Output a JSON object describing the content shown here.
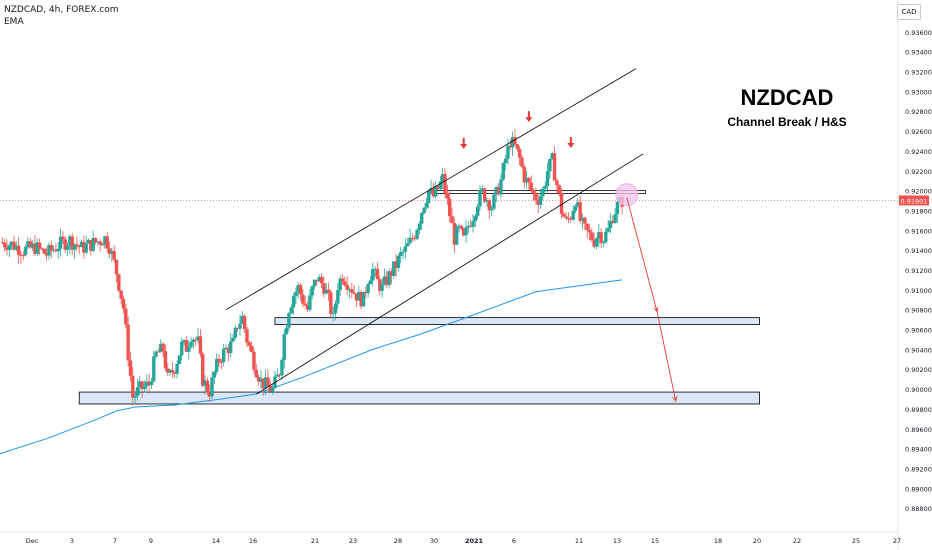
{
  "header": {
    "title": "NZDCAD, 4h, FOREX.com",
    "indicator": "EMA",
    "currency_button": "CAD"
  },
  "annotation": {
    "title": "NZDCAD",
    "subtitle": "Channel Break / H&S"
  },
  "colors": {
    "bull": "#26a69a",
    "bear": "#ef5350",
    "ema": "#2196f3",
    "arrow": "#e53935",
    "zone_fill": "#dbe7f7",
    "price_line": "#ef5350",
    "price_tag": "#ef5350"
  },
  "chart_data": {
    "type": "candlestick",
    "symbol": "NZDCAD",
    "timeframe": "4h",
    "ylim": [
      0.8858,
      0.938
    ],
    "y_ticks": [
      "0.93600",
      "0.93400",
      "0.93200",
      "0.93000",
      "0.92800",
      "0.92600",
      "0.92400",
      "0.92200",
      "0.92000",
      "0.91800",
      "0.91600",
      "0.91400",
      "0.91200",
      "0.91000",
      "0.90800",
      "0.90600",
      "0.90400",
      "0.90200",
      "0.90000",
      "0.89800",
      "0.89600",
      "0.89400",
      "0.89200",
      "0.89000",
      "0.88800"
    ],
    "x_ticks": [
      "Dec",
      "3",
      "7",
      "9",
      "14",
      "16",
      "21",
      "23",
      "28",
      "30",
      "2021",
      "6",
      "11",
      "13",
      "15",
      "18",
      "20",
      "22",
      "25",
      "27"
    ],
    "last_price": "0.91901",
    "close_path": [
      {
        "x": 0,
        "y": 0.9148
      },
      {
        "x": 5,
        "y": 0.9146
      },
      {
        "x": 10,
        "y": 0.914
      },
      {
        "x": 15,
        "y": 0.9143
      },
      {
        "x": 20,
        "y": 0.9136
      },
      {
        "x": 25,
        "y": 0.9145
      },
      {
        "x": 30,
        "y": 0.915
      },
      {
        "x": 35,
        "y": 0.9142
      },
      {
        "x": 41,
        "y": 0.9148
      },
      {
        "x": 45,
        "y": 0.9152
      },
      {
        "x": 47,
        "y": 0.9144
      },
      {
        "x": 50,
        "y": 0.9118
      },
      {
        "x": 53,
        "y": 0.9082
      },
      {
        "x": 55,
        "y": 0.9035
      },
      {
        "x": 57,
        "y": 0.8992
      },
      {
        "x": 60,
        "y": 0.9
      },
      {
        "x": 62,
        "y": 0.9002
      },
      {
        "x": 64,
        "y": 0.9005
      },
      {
        "x": 67,
        "y": 0.9035
      },
      {
        "x": 70,
        "y": 0.904
      },
      {
        "x": 72,
        "y": 0.901
      },
      {
        "x": 75,
        "y": 0.9022
      },
      {
        "x": 78,
        "y": 0.9044
      },
      {
        "x": 80,
        "y": 0.9042
      },
      {
        "x": 82,
        "y": 0.9055
      },
      {
        "x": 85,
        "y": 0.9047
      },
      {
        "x": 87,
        "y": 0.901
      },
      {
        "x": 89,
        "y": 0.9
      },
      {
        "x": 90,
        "y": 0.8998
      },
      {
        "x": 92,
        "y": 0.9016
      },
      {
        "x": 94,
        "y": 0.903
      },
      {
        "x": 97,
        "y": 0.904
      },
      {
        "x": 100,
        "y": 0.9046
      },
      {
        "x": 102,
        "y": 0.9065
      },
      {
        "x": 104,
        "y": 0.9072
      },
      {
        "x": 106,
        "y": 0.905
      },
      {
        "x": 108,
        "y": 0.9035
      },
      {
        "x": 110,
        "y": 0.902
      },
      {
        "x": 112,
        "y": 0.9008
      },
      {
        "x": 115,
        "y": 0.9002
      },
      {
        "x": 117,
        "y": 0.8999
      },
      {
        "x": 120,
        "y": 0.9018
      },
      {
        "x": 122,
        "y": 0.9055
      },
      {
        "x": 124,
        "y": 0.9082
      },
      {
        "x": 126,
        "y": 0.9095
      },
      {
        "x": 128,
        "y": 0.9102
      },
      {
        "x": 130,
        "y": 0.909
      },
      {
        "x": 132,
        "y": 0.908
      },
      {
        "x": 134,
        "y": 0.91
      },
      {
        "x": 136,
        "y": 0.9112
      },
      {
        "x": 139,
        "y": 0.9104
      },
      {
        "x": 141,
        "y": 0.909
      },
      {
        "x": 143,
        "y": 0.907
      },
      {
        "x": 145,
        "y": 0.9105
      },
      {
        "x": 147,
        "y": 0.9115
      },
      {
        "x": 149,
        "y": 0.9108
      },
      {
        "x": 152,
        "y": 0.9098
      },
      {
        "x": 154,
        "y": 0.9092
      },
      {
        "x": 156,
        "y": 0.909
      },
      {
        "x": 158,
        "y": 0.9112
      },
      {
        "x": 160,
        "y": 0.912
      },
      {
        "x": 162,
        "y": 0.9108
      },
      {
        "x": 164,
        "y": 0.9102
      },
      {
        "x": 166,
        "y": 0.911
      },
      {
        "x": 168,
        "y": 0.9118
      },
      {
        "x": 170,
        "y": 0.9125
      },
      {
        "x": 172,
        "y": 0.9135
      },
      {
        "x": 174,
        "y": 0.914
      },
      {
        "x": 176,
        "y": 0.9148
      },
      {
        "x": 178,
        "y": 0.9157
      },
      {
        "x": 180,
        "y": 0.9172
      },
      {
        "x": 182,
        "y": 0.9188
      },
      {
        "x": 184,
        "y": 0.92
      },
      {
        "x": 186,
        "y": 0.9194
      },
      {
        "x": 188,
        "y": 0.9202
      },
      {
        "x": 190,
        "y": 0.9212
      },
      {
        "x": 191,
        "y": 0.92
      },
      {
        "x": 193,
        "y": 0.9176
      },
      {
        "x": 195,
        "y": 0.9152
      },
      {
        "x": 197,
        "y": 0.916
      },
      {
        "x": 199,
        "y": 0.915
      },
      {
        "x": 201,
        "y": 0.9165
      },
      {
        "x": 203,
        "y": 0.9175
      },
      {
        "x": 205,
        "y": 0.919
      },
      {
        "x": 207,
        "y": 0.9198
      },
      {
        "x": 209,
        "y": 0.9192
      },
      {
        "x": 211,
        "y": 0.9184
      },
      {
        "x": 213,
        "y": 0.9196
      },
      {
        "x": 215,
        "y": 0.921
      },
      {
        "x": 217,
        "y": 0.9232
      },
      {
        "x": 219,
        "y": 0.925
      },
      {
        "x": 221,
        "y": 0.9244
      },
      {
        "x": 223,
        "y": 0.9232
      },
      {
        "x": 225,
        "y": 0.9214
      },
      {
        "x": 227,
        "y": 0.9205
      },
      {
        "x": 229,
        "y": 0.9196
      },
      {
        "x": 231,
        "y": 0.9192
      },
      {
        "x": 233,
        "y": 0.92
      },
      {
        "x": 235,
        "y": 0.922
      },
      {
        "x": 237,
        "y": 0.923
      },
      {
        "x": 239,
        "y": 0.9206
      },
      {
        "x": 241,
        "y": 0.918
      },
      {
        "x": 243,
        "y": 0.9168
      },
      {
        "x": 245,
        "y": 0.9175
      },
      {
        "x": 247,
        "y": 0.9192
      },
      {
        "x": 249,
        "y": 0.917
      },
      {
        "x": 251,
        "y": 0.916
      },
      {
        "x": 253,
        "y": 0.9155
      },
      {
        "x": 255,
        "y": 0.915
      },
      {
        "x": 257,
        "y": 0.9158
      },
      {
        "x": 259,
        "y": 0.9152
      },
      {
        "x": 261,
        "y": 0.916
      },
      {
        "x": 263,
        "y": 0.9175
      },
      {
        "x": 265,
        "y": 0.9185
      },
      {
        "x": 267,
        "y": 0.919
      }
    ],
    "ema_path": [
      {
        "x": 0,
        "y": 0.8935
      },
      {
        "x": 20,
        "y": 0.895
      },
      {
        "x": 40,
        "y": 0.8968
      },
      {
        "x": 50,
        "y": 0.8978
      },
      {
        "x": 58,
        "y": 0.8982
      },
      {
        "x": 75,
        "y": 0.8984
      },
      {
        "x": 95,
        "y": 0.899
      },
      {
        "x": 110,
        "y": 0.8995
      },
      {
        "x": 130,
        "y": 0.9012
      },
      {
        "x": 160,
        "y": 0.904
      },
      {
        "x": 180,
        "y": 0.9055
      },
      {
        "x": 200,
        "y": 0.9072
      },
      {
        "x": 215,
        "y": 0.9085
      },
      {
        "x": 230,
        "y": 0.9098
      },
      {
        "x": 245,
        "y": 0.9103
      },
      {
        "x": 267,
        "y": 0.911
      }
    ],
    "trendlines": [
      {
        "from": {
          "x": 97,
          "y": 0.908
        },
        "to": {
          "x": 273,
          "y": 0.9323
        }
      },
      {
        "from": {
          "x": 110,
          "y": 0.8995
        },
        "to": {
          "x": 276,
          "y": 0.9237
        }
      }
    ],
    "resistance_box": {
      "x0": 185,
      "x1": 277,
      "y0": 0.9197,
      "y1": 0.92
    },
    "zones": [
      {
        "x0": 118,
        "x1": 326,
        "y0": 0.9065,
        "y1": 0.9072
      },
      {
        "x0": 34,
        "x1": 326,
        "y0": 0.8985,
        "y1": 0.8997
      }
    ],
    "projection": [
      {
        "x": 269,
        "y": 0.9193
      },
      {
        "x": 282,
        "y": 0.9078
      },
      {
        "x": 290,
        "y": 0.8988
      }
    ],
    "head_shoulder_markers": [
      {
        "x": 199,
        "y": 0.9243
      },
      {
        "x": 227,
        "y": 0.927
      },
      {
        "x": 245,
        "y": 0.9244
      }
    ],
    "break_point": {
      "x": 269,
      "y": 0.9196
    }
  }
}
